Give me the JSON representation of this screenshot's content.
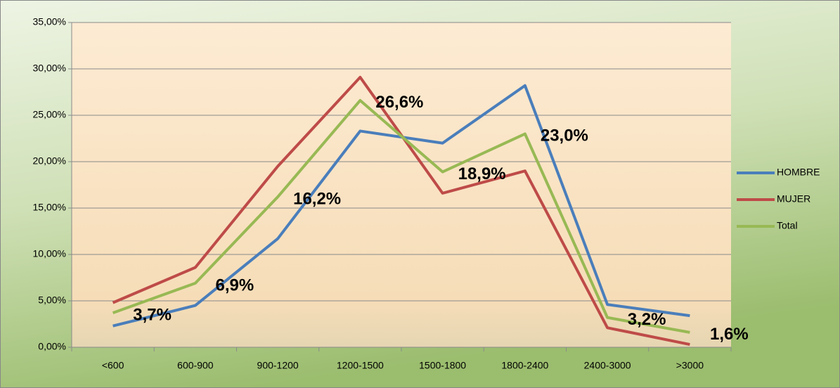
{
  "chart_data": {
    "type": "line",
    "categories": [
      "<600",
      "600-900",
      "900-1200",
      "1200-1500",
      "1500-1800",
      "1800-2400",
      "2400-3000",
      ">3000"
    ],
    "series": [
      {
        "name": "HOMBRE",
        "color": "#4a7ebb",
        "values": [
          2.3,
          4.5,
          11.7,
          23.3,
          22.0,
          28.2,
          4.6,
          3.4
        ]
      },
      {
        "name": "MUJER",
        "color": "#be4b48",
        "values": [
          4.8,
          8.6,
          19.5,
          29.1,
          16.6,
          19.0,
          2.1,
          0.3
        ]
      },
      {
        "name": "Total",
        "color": "#98b954",
        "values": [
          3.7,
          6.9,
          16.2,
          26.6,
          18.9,
          23.0,
          3.2,
          1.6
        ],
        "value_labels": [
          "3,7%",
          "6,9%",
          "16,2%",
          "26,6%",
          "18,9%",
          "23,0%",
          "3,2%",
          "1,6%"
        ]
      }
    ],
    "ylim": [
      0,
      35
    ],
    "yticks": [
      {
        "value": 0,
        "label": "0,00%"
      },
      {
        "value": 5,
        "label": "5,00%"
      },
      {
        "value": 10,
        "label": "10,00%"
      },
      {
        "value": 15,
        "label": "15,00%"
      },
      {
        "value": 20,
        "label": "20,00%"
      },
      {
        "value": 25,
        "label": "25,00%"
      },
      {
        "value": 30,
        "label": "30,00%"
      },
      {
        "value": 35,
        "label": "35,00%"
      }
    ],
    "grid": true,
    "legend": "right"
  }
}
